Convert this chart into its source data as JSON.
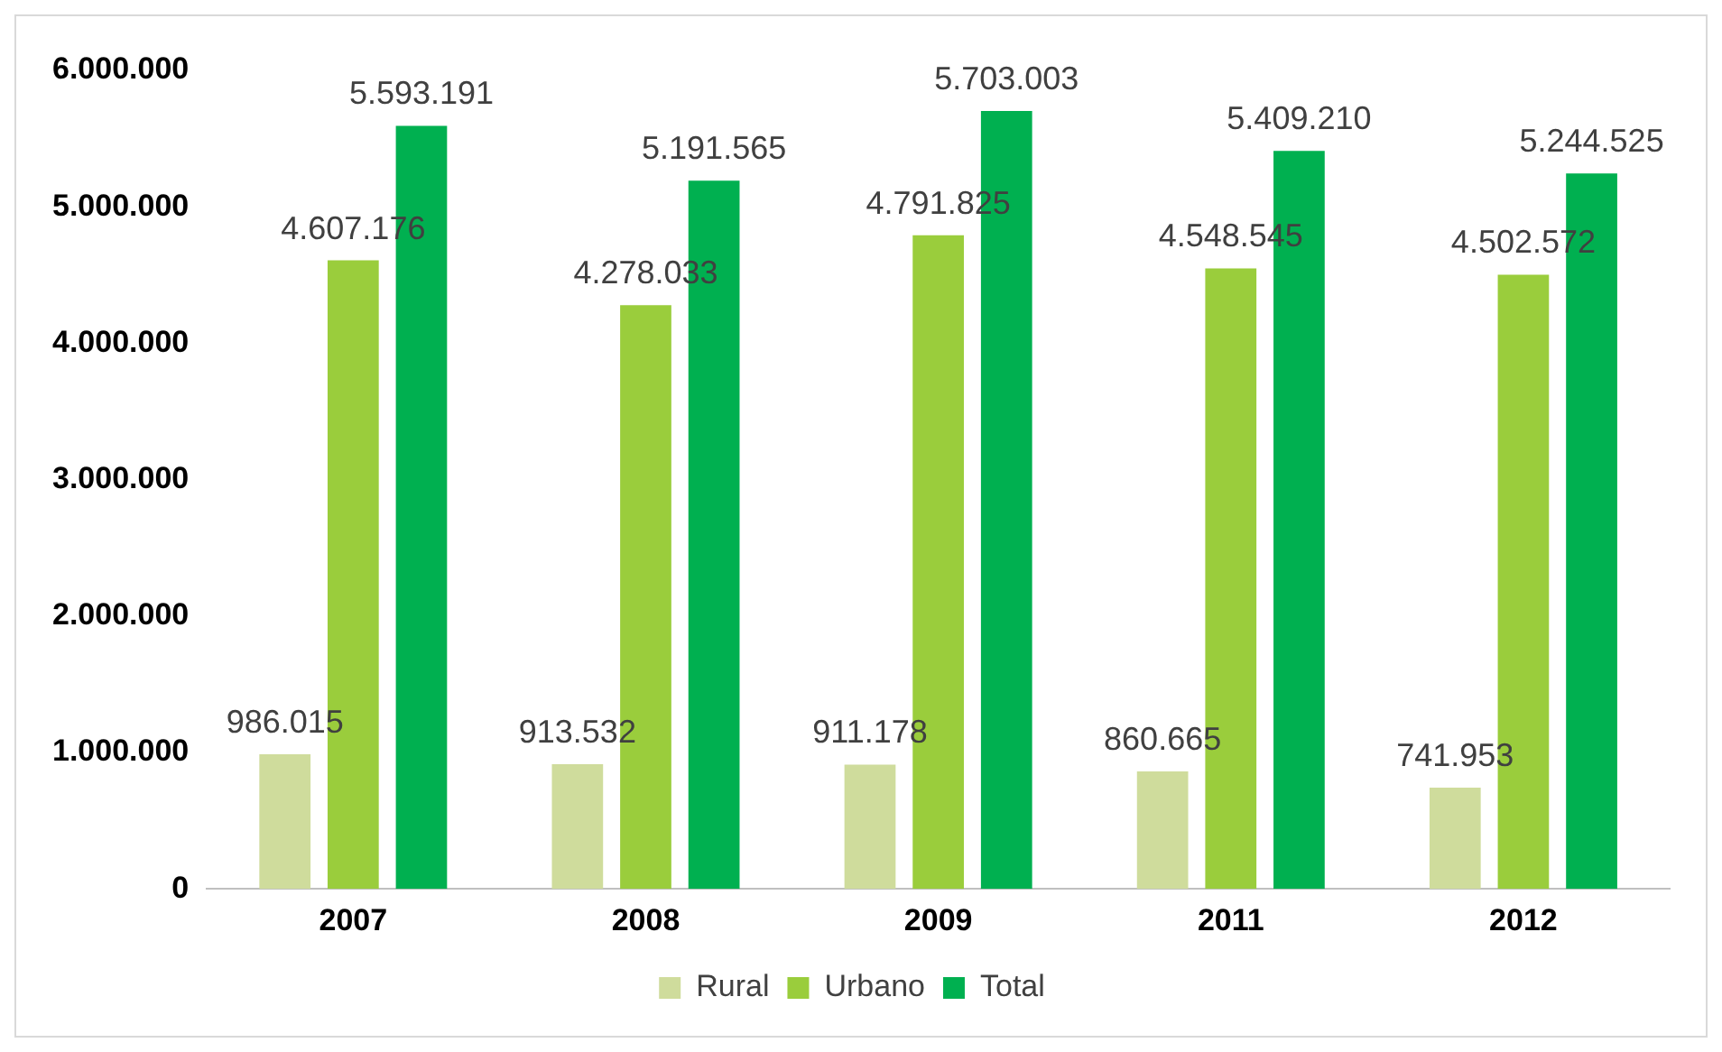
{
  "chart_data": {
    "type": "bar",
    "categories": [
      "2007",
      "2008",
      "2009",
      "2011",
      "2012"
    ],
    "series": [
      {
        "name": "Rural",
        "color": "#cfdc9c",
        "values": [
          986015,
          913532,
          911178,
          860665,
          741953
        ],
        "value_labels": [
          "986.015",
          "913.532",
          "911.178",
          "860.665",
          "741.953"
        ]
      },
      {
        "name": "Urbano",
        "color": "#9acd3c",
        "values": [
          4607176,
          4278033,
          4791825,
          4548545,
          4502572
        ],
        "value_labels": [
          "4.607.176",
          "4.278.033",
          "4.791.825",
          "4.548.545",
          "4.502.572"
        ]
      },
      {
        "name": "Total",
        "color": "#00b050",
        "values": [
          5593191,
          5191565,
          5703003,
          5409210,
          5244525
        ],
        "value_labels": [
          "5.593.191",
          "5.191.565",
          "5.703.003",
          "5.409.210",
          "5.244.525"
        ]
      }
    ],
    "ylim": [
      0,
      6000000
    ],
    "yticks": [
      {
        "value": 0,
        "label": "0"
      },
      {
        "value": 1000000,
        "label": "1.000.000"
      },
      {
        "value": 2000000,
        "label": "2.000.000"
      },
      {
        "value": 3000000,
        "label": "3.000.000"
      },
      {
        "value": 4000000,
        "label": "4.000.000"
      },
      {
        "value": 5000000,
        "label": "5.000.000"
      },
      {
        "value": 6000000,
        "label": "6.000.000"
      }
    ],
    "grid": false,
    "legend": "bottom"
  }
}
